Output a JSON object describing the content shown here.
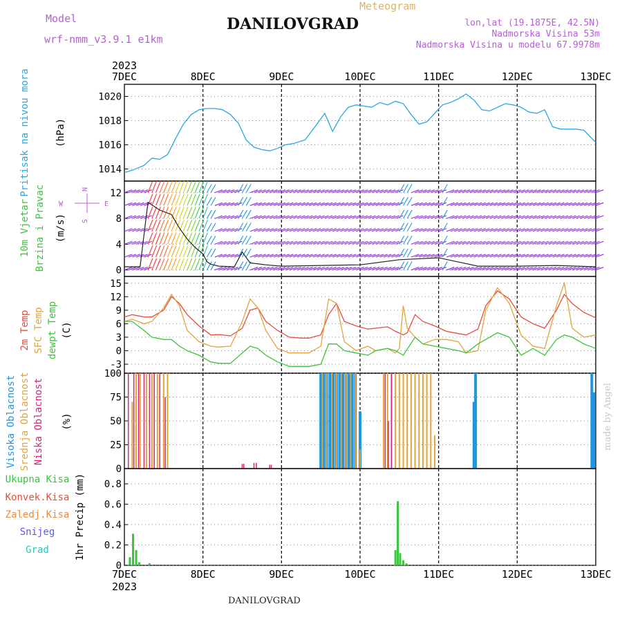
{
  "header": {
    "model_label": "Model",
    "model_name": "wrf-nmm_v3.9.1 e1km",
    "station": "DANILOVGRAD",
    "meteogram": "Meteogram",
    "lonlat": "lon,lat (19.1875E, 42.5N)",
    "elevation": "Nadmorska Visina 53m",
    "model_elevation": "Nadmorska Visina u modelu 67.9978m",
    "footer_station": "DANILOVGRAD",
    "credit": "made by Angel"
  },
  "colors": {
    "pressure": "#2aa7e0",
    "temp2m": "#e84a3c",
    "sfc": "#e3a33a",
    "dewpt": "#3ac53a",
    "high_cloud": "#2196e0",
    "mid_cloud": "#e3a33a",
    "low_cloud": "#d4267a",
    "precip": "#3ac53a",
    "wind_barb": "#8a2be2",
    "header_purple": "#b45fd6",
    "meteogram_gold": "#e3b25a"
  },
  "chart_data": [
    {
      "type": "line",
      "panel": "pressure",
      "ylabel": [
        "Pritisak na nivou mora",
        "(hPa)"
      ],
      "ylim": [
        1013,
        1021
      ],
      "yticks": [
        "1014",
        "1016",
        "1018",
        "1020"
      ],
      "x_top_labels": [
        "7DEC",
        "8DEC",
        "9DEC",
        "10DEC",
        "11DEC",
        "12DEC",
        "13DEC"
      ],
      "x_top_year": "2023",
      "series": [
        {
          "x": [
            0,
            0.1,
            0.25,
            0.35,
            0.45,
            0.55,
            0.65,
            0.75,
            0.85,
            0.95,
            1.05,
            1.15,
            1.25,
            1.35,
            1.45,
            1.55,
            1.65,
            1.75,
            1.85,
            1.95,
            2.05,
            2.15,
            2.3,
            2.45,
            2.55,
            2.65,
            2.75,
            2.85,
            2.95,
            3.05,
            3.15,
            3.25,
            3.35,
            3.45,
            3.55,
            3.65,
            3.75,
            3.85,
            3.95,
            4.05,
            4.15,
            4.25,
            4.35,
            4.45,
            4.55,
            4.65,
            4.75,
            4.85,
            4.95,
            5.05,
            5.15,
            5.25,
            5.35,
            5.45,
            5.55,
            5.65,
            5.75,
            5.85,
            6.0
          ],
          "values": [
            1013.7,
            1013.9,
            1014.3,
            1014.9,
            1014.8,
            1015.2,
            1016.5,
            1017.7,
            1018.5,
            1018.9,
            1019.0,
            1019.0,
            1018.9,
            1018.5,
            1017.8,
            1016.4,
            1015.8,
            1015.6,
            1015.5,
            1015.7,
            1016.0,
            1016.1,
            1016.4,
            1017.7,
            1018.6,
            1017.1,
            1018.3,
            1019.1,
            1019.3,
            1019.2,
            1019.1,
            1019.5,
            1019.3,
            1019.6,
            1019.4,
            1018.5,
            1017.7,
            1017.9,
            1018.6,
            1019.3,
            1019.5,
            1019.8,
            1020.2,
            1019.7,
            1018.9,
            1018.8,
            1019.1,
            1019.4,
            1019.3,
            1019.1,
            1018.7,
            1018.6,
            1018.9,
            1017.5,
            1017.3,
            1017.3,
            1017.3,
            1017.2,
            1016.2
          ]
        }
      ]
    },
    {
      "type": "line",
      "panel": "wind",
      "ylabel": [
        "10m Vjetar",
        "Brzina i Pravac",
        "(m/s)"
      ],
      "compass": [
        "N",
        "E",
        "S",
        "W"
      ],
      "ylim": [
        -1,
        13.8
      ],
      "yticks": [
        "0",
        "4",
        "8",
        "12"
      ],
      "series": [
        {
          "name": "speed",
          "x": [
            0,
            0.2,
            0.3,
            0.45,
            0.6,
            0.7,
            0.8,
            0.9,
            1.0,
            1.05,
            1.1,
            1.2,
            1.4,
            1.5,
            1.6,
            1.8,
            2.0,
            2.5,
            3.0,
            3.5,
            4.0,
            4.5,
            5.0,
            5.5,
            6.0
          ],
          "values": [
            0.5,
            0.5,
            10.5,
            9.3,
            8.6,
            6.5,
            4.8,
            3.5,
            2.5,
            1.3,
            0.9,
            0.6,
            0.5,
            2.8,
            1.1,
            0.8,
            0.6,
            0.7,
            0.8,
            1.6,
            1.9,
            0.6,
            0.6,
            0.7,
            0.5
          ]
        }
      ]
    },
    {
      "type": "line",
      "panel": "temperature",
      "ylabel": [
        "2m Temp",
        "SFC Temp",
        "dewpt Temp",
        "(C)"
      ],
      "ylim": [
        -5,
        16.5
      ],
      "yticks": [
        "-3",
        "0",
        "3",
        "6",
        "9",
        "12",
        "15"
      ],
      "series": [
        {
          "name": "2m Temp",
          "x": [
            0,
            0.1,
            0.25,
            0.35,
            0.5,
            0.6,
            0.7,
            0.8,
            0.95,
            1.1,
            1.2,
            1.35,
            1.5,
            1.6,
            1.7,
            1.8,
            1.95,
            2.1,
            2.25,
            2.35,
            2.5,
            2.6,
            2.7,
            2.8,
            2.95,
            3.1,
            3.2,
            3.35,
            3.45,
            3.55,
            3.6,
            3.7,
            3.8,
            3.95,
            4.1,
            4.25,
            4.35,
            4.5,
            4.6,
            4.75,
            4.9,
            5.05,
            5.2,
            5.35,
            5.5,
            5.6,
            5.7,
            5.85,
            6.0
          ],
          "values": [
            7.5,
            8.0,
            7.5,
            7.5,
            9.0,
            12.0,
            10.5,
            8.0,
            5.5,
            3.5,
            3.6,
            3.3,
            5.0,
            9.0,
            9.5,
            6.5,
            4.5,
            3.0,
            2.8,
            2.8,
            3.5,
            8.0,
            10.5,
            6.5,
            5.5,
            4.8,
            5.0,
            5.3,
            4.3,
            3.5,
            4.0,
            8.0,
            6.5,
            5.5,
            4.3,
            3.8,
            3.5,
            4.8,
            10.0,
            13.3,
            11.5,
            7.5,
            6.0,
            5.0,
            9.0,
            12.5,
            10.5,
            8.5,
            7.3
          ]
        },
        {
          "name": "SFC Temp",
          "x": [
            0,
            0.1,
            0.25,
            0.35,
            0.5,
            0.6,
            0.7,
            0.8,
            0.95,
            1.1,
            1.2,
            1.35,
            1.5,
            1.6,
            1.7,
            1.8,
            1.95,
            2.1,
            2.25,
            2.35,
            2.5,
            2.6,
            2.7,
            2.8,
            2.95,
            3.1,
            3.2,
            3.35,
            3.45,
            3.5,
            3.55,
            3.6,
            3.7,
            3.8,
            3.95,
            4.1,
            4.25,
            4.35,
            4.5,
            4.6,
            4.75,
            4.9,
            5.05,
            5.2,
            5.35,
            5.5,
            5.6,
            5.7,
            5.85,
            6.0
          ],
          "values": [
            6.5,
            7.0,
            6.0,
            6.5,
            9.5,
            12.5,
            10.0,
            4.5,
            2.0,
            1.0,
            0.8,
            1.0,
            6.5,
            11.5,
            9.5,
            4.5,
            0.5,
            -0.5,
            -0.5,
            -0.5,
            1.0,
            11.5,
            10.5,
            2.0,
            0.0,
            1.0,
            0.0,
            0.5,
            -0.5,
            0.5,
            10.0,
            5.0,
            3.0,
            1.5,
            2.5,
            2.5,
            2.0,
            -0.5,
            0.0,
            9.0,
            14.0,
            10.5,
            3.5,
            1.0,
            0.5,
            10.0,
            15.0,
            5.0,
            3.0,
            3.5
          ]
        },
        {
          "name": "dewpt Temp",
          "x": [
            0,
            0.1,
            0.25,
            0.35,
            0.5,
            0.6,
            0.7,
            0.8,
            0.95,
            1.1,
            1.2,
            1.35,
            1.5,
            1.6,
            1.7,
            1.8,
            1.95,
            2.1,
            2.25,
            2.35,
            2.5,
            2.6,
            2.7,
            2.8,
            2.95,
            3.1,
            3.2,
            3.35,
            3.45,
            3.55,
            3.7,
            3.8,
            3.95,
            4.1,
            4.25,
            4.35,
            4.5,
            4.6,
            4.75,
            4.9,
            5.05,
            5.2,
            5.35,
            5.5,
            5.6,
            5.7,
            5.85,
            6.0
          ],
          "values": [
            6.5,
            6.5,
            4.5,
            3.0,
            2.5,
            2.5,
            1.0,
            0.0,
            -1.0,
            -2.5,
            -2.8,
            -2.8,
            -0.5,
            1.0,
            0.5,
            -1.0,
            -2.5,
            -3.5,
            -3.5,
            -3.5,
            -3.0,
            1.5,
            1.5,
            0.0,
            -0.5,
            -1.0,
            0.0,
            0.5,
            0.0,
            -1.0,
            3.0,
            1.5,
            1.0,
            0.5,
            0.0,
            -0.5,
            1.5,
            2.5,
            4.0,
            3.0,
            -1.0,
            0.5,
            -1.0,
            2.5,
            3.5,
            3.0,
            1.5,
            0.5
          ]
        }
      ]
    },
    {
      "type": "bar",
      "panel": "cloud",
      "ylabel": [
        "Visoka Oblacnost",
        "Srednja Oblacnost",
        "Niska Oblacnost",
        "(%)"
      ],
      "ylim": [
        0,
        100
      ],
      "yticks": [
        "0",
        "25",
        "50",
        "75",
        "100"
      ],
      "series": [
        {
          "name": "Visoka Oblacnost",
          "x": [
            2.5,
            2.54,
            2.58,
            2.62,
            2.66,
            2.7,
            2.74,
            2.78,
            2.82,
            2.86,
            2.9,
            2.94,
            3.0,
            4.45,
            4.47,
            5.95,
            5.98
          ],
          "values": [
            100,
            100,
            100,
            100,
            100,
            100,
            100,
            100,
            100,
            100,
            100,
            100,
            60,
            70,
            100,
            100,
            80
          ]
        },
        {
          "name": "Srednja Oblacnost",
          "x": [
            0.1,
            0.15,
            0.2,
            0.28,
            0.35,
            0.42,
            0.5,
            0.55,
            2.52,
            2.58,
            2.64,
            2.7,
            2.76,
            2.82,
            2.88,
            2.94,
            3.0,
            3.3,
            3.35,
            3.4,
            3.45,
            3.5,
            3.55,
            3.6,
            3.65,
            3.7,
            3.75,
            3.8,
            3.85,
            3.9,
            3.95
          ],
          "values": [
            70,
            100,
            100,
            100,
            100,
            100,
            100,
            100,
            100,
            100,
            100,
            100,
            100,
            100,
            100,
            100,
            20,
            100,
            100,
            100,
            100,
            100,
            100,
            100,
            100,
            100,
            100,
            100,
            100,
            100,
            35
          ]
        },
        {
          "name": "Niska Oblacnost",
          "x": [
            0.05,
            0.12,
            0.18,
            0.25,
            0.32,
            0.38,
            0.45,
            0.52,
            1.5,
            1.52,
            1.65,
            1.68,
            1.85,
            1.87,
            3.32,
            3.36,
            3.4
          ],
          "values": [
            100,
            100,
            100,
            100,
            100,
            100,
            100,
            75,
            5,
            5,
            6,
            6,
            4,
            4,
            100,
            50,
            100
          ]
        }
      ]
    },
    {
      "type": "bar",
      "panel": "precip",
      "ylabel": [
        "1hr Precip (mm)"
      ],
      "legend": [
        "Ukupna Kisa",
        "Konvek.Kisa",
        "Zaledj.Kisa",
        "Snijeg",
        "Grad"
      ],
      "ylim": [
        0,
        0.95
      ],
      "yticks": [
        "0",
        "0.2",
        "0.4",
        "0.6",
        "0.8"
      ],
      "x_bottom_labels": [
        "7DEC",
        "8DEC",
        "9DEC",
        "10DEC",
        "11DEC",
        "12DEC",
        "13DEC"
      ],
      "x_bottom_year": "2023",
      "series": [
        {
          "name": "Ukupna Kisa",
          "x": [
            0.07,
            0.11,
            0.15,
            0.19,
            0.32,
            3.45,
            3.48,
            3.51,
            3.55,
            3.59
          ],
          "values": [
            0.08,
            0.31,
            0.15,
            0.03,
            0.02,
            0.15,
            0.63,
            0.12,
            0.05,
            0.02
          ]
        }
      ]
    }
  ]
}
